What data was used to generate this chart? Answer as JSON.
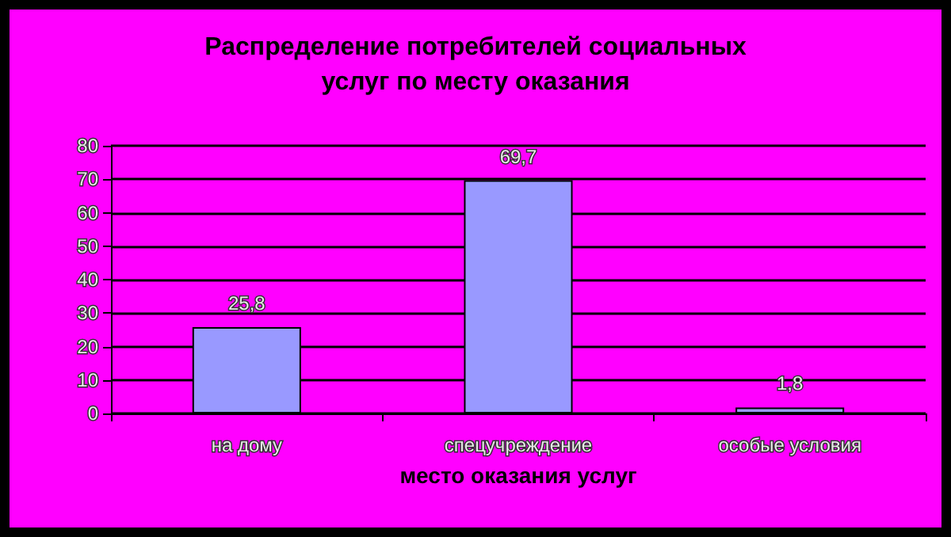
{
  "chart_data": {
    "type": "bar",
    "title": "Распределение потребителей социальных\nуслуг по месту оказания",
    "xlabel": "место оказания услуг",
    "categories": [
      "на дому",
      "спецучреждение",
      "особые условия"
    ],
    "values": [
      25.8,
      69.7,
      1.8
    ],
    "value_labels": [
      "25,8",
      "69,7",
      "1,8"
    ],
    "color": "#9999ff",
    "ylim": [
      0,
      80
    ],
    "yticks": [
      0,
      10,
      20,
      30,
      40,
      50,
      60,
      70,
      80
    ],
    "grid": "y"
  }
}
